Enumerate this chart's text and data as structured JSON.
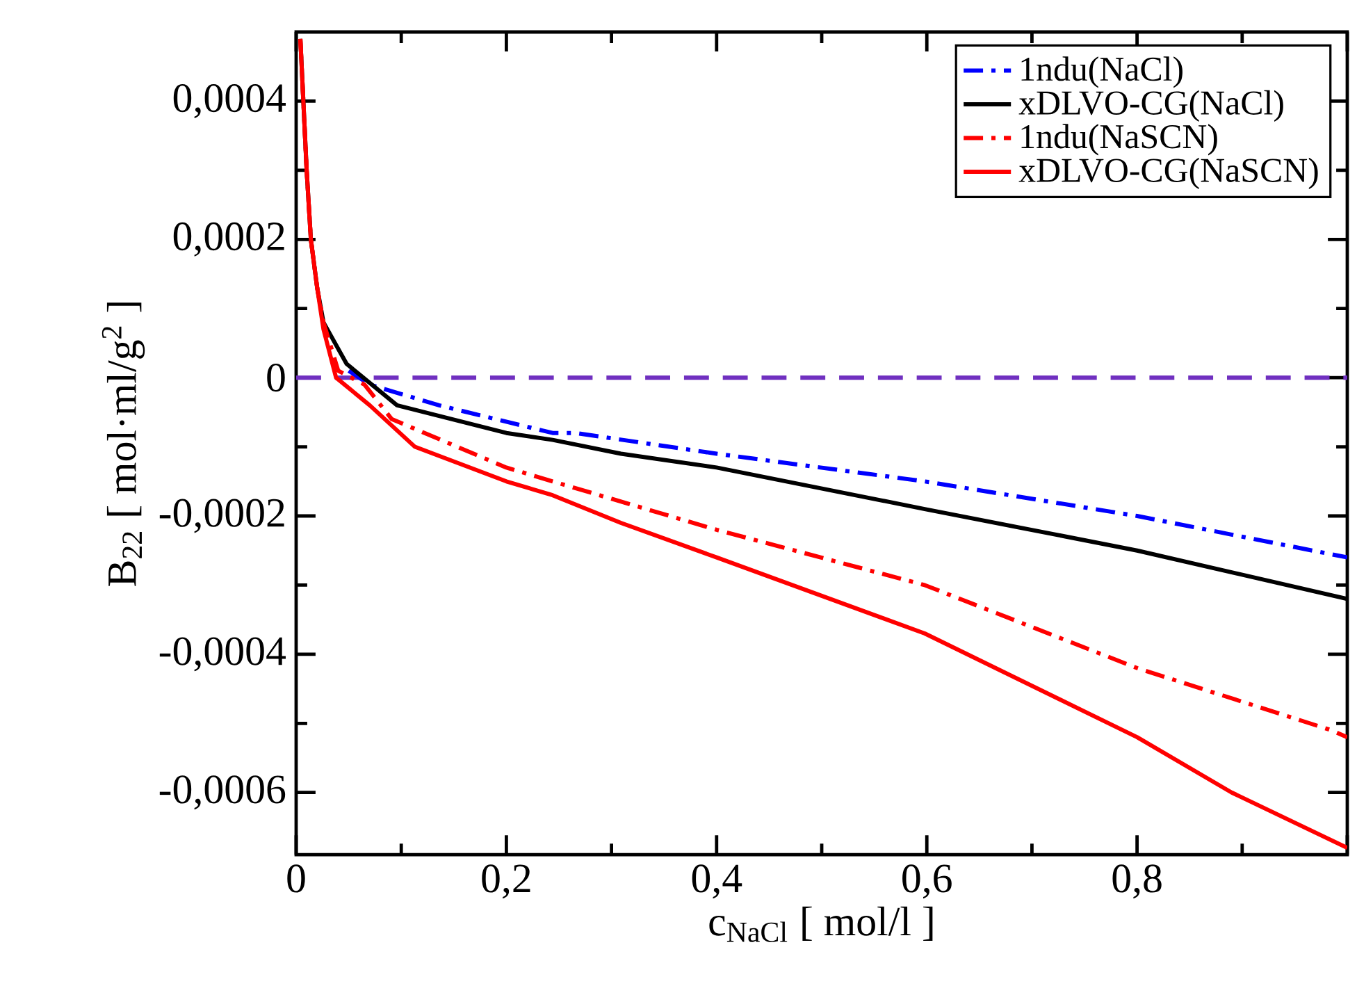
{
  "chart_data": {
    "type": "line",
    "xlabel": "c$_{NaCl}$ [ mol/l ]",
    "ylabel": "B$_{22}$ [ mol·ml/g$^{2}$ ]",
    "xlim": [
      0,
      1
    ],
    "ylim": [
      -0.00069,
      0.0005
    ],
    "xticks": [
      {
        "value": 0,
        "label": "0"
      },
      {
        "value": 0.2,
        "label": "0,2"
      },
      {
        "value": 0.4,
        "label": "0,4"
      },
      {
        "value": 0.6,
        "label": "0,6"
      },
      {
        "value": 0.8,
        "label": "0,8"
      },
      {
        "value": 1,
        "label": null
      }
    ],
    "yticks": [
      {
        "value": -0.0006,
        "label": "-0,0006"
      },
      {
        "value": -0.0004,
        "label": "-0,0004"
      },
      {
        "value": -0.0002,
        "label": "-0,0002"
      },
      {
        "value": 0,
        "label": "0"
      },
      {
        "value": 0.0002,
        "label": "0,0002"
      },
      {
        "value": 0.0004,
        "label": "0,0004"
      }
    ],
    "legend": "top right",
    "grid": false,
    "series": [
      {
        "name": "1ndu(NaCl)",
        "color": "#0000ff",
        "line_style": "dashdot",
        "x": [
          0.05,
          0.07,
          0.136,
          0.244,
          0.266,
          0.4,
          0.598,
          0.8,
          1.0
        ],
        "values": [
          1e-05,
          -1e-05,
          -4e-05,
          -8e-05,
          -8e-05,
          -0.00011,
          -0.00015,
          -0.0002,
          -0.00026
        ]
      },
      {
        "name": "xDLVO-CG(NaCl)",
        "color": "#000000",
        "line_style": "solid",
        "x": [
          0.004,
          0.01,
          0.014,
          0.02,
          0.026,
          0.048,
          0.096,
          0.2,
          0.244,
          0.309,
          0.4,
          0.598,
          0.8,
          1.0
        ],
        "values": [
          0.00049,
          0.0003,
          0.0002,
          0.00013,
          8e-05,
          2e-05,
          -4e-05,
          -8e-05,
          -9e-05,
          -0.00011,
          -0.00013,
          -0.00019,
          -0.00025,
          -0.00032
        ]
      },
      {
        "name": "1ndu(NaSCN)",
        "color": "#ff0000",
        "line_style": "dashdot",
        "x": [
          0.004,
          0.01,
          0.014,
          0.02,
          0.026,
          0.04,
          0.065,
          0.091,
          0.2,
          0.244,
          0.4,
          0.598,
          0.8,
          0.985,
          1.0
        ],
        "values": [
          0.00049,
          0.0003,
          0.0002,
          0.00013,
          8e-05,
          1e-05,
          -1e-05,
          -6e-05,
          -0.00013,
          -0.00015,
          -0.00022,
          -0.0003,
          -0.00042,
          -0.00051,
          -0.00052
        ]
      },
      {
        "name": "xDLVO-CG(NaSCN)",
        "color": "#ff0000",
        "line_style": "solid",
        "x": [
          0.004,
          0.01,
          0.014,
          0.02,
          0.026,
          0.038,
          0.07,
          0.113,
          0.2,
          0.244,
          0.309,
          0.4,
          0.598,
          0.8,
          0.89,
          1.0
        ],
        "values": [
          0.00049,
          0.0003,
          0.0002,
          0.00013,
          7e-05,
          0.0,
          -4e-05,
          -0.0001,
          -0.00015,
          -0.00017,
          -0.00021,
          -0.00026,
          -0.00037,
          -0.00052,
          -0.0006,
          -0.00068
        ]
      }
    ],
    "ref_lines": [
      {
        "axis": "y",
        "value": 0,
        "color": "#7030c0",
        "line_style": "dashed"
      }
    ]
  }
}
